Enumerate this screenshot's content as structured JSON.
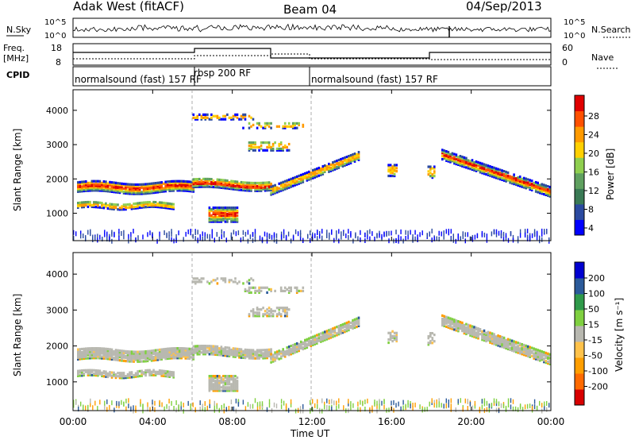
{
  "header": {
    "station": "Adak West (fitACF)",
    "beam": "Beam 04",
    "date": "04/Sep/2013"
  },
  "strip": {
    "nsky_label": "N.Sky",
    "nsky_ticks": [
      "10^5",
      "10^0"
    ],
    "nsearch_label": "N.Search",
    "freq_label_1": "Freq.",
    "freq_label_2": "[MHz]",
    "freq_ticks": [
      "18",
      "8"
    ],
    "nave_ticks": [
      "60",
      "0"
    ],
    "nave_label": "Nave",
    "cpid_label": "CPID"
  },
  "cpid_segments": [
    {
      "label": "normalsound (fast) 157 RF",
      "start_hour": 0
    },
    {
      "label": "rbsp 200 RF",
      "start_hour": 6
    },
    {
      "label": "normalsound (fast) 157 RF",
      "start_hour": 12
    }
  ],
  "colors": {
    "power_scale": [
      "#0000ff",
      "#2b4aa0",
      "#3a7a55",
      "#5fa05f",
      "#8fcf4f",
      "#ffd000",
      "#ff9a00",
      "#ff5000",
      "#e00000"
    ],
    "velocity_scale": [
      "#d80000",
      "#ff6a00",
      "#ff9e00",
      "#ffc24a",
      "#b8b8b0",
      "#7fd040",
      "#2f9a4a",
      "#2b5a9a",
      "#0000d0"
    ]
  },
  "chart_data": [
    {
      "type": "heatmap",
      "name": "power",
      "ylabel": "Slant Range [km]",
      "yticks": [
        1000,
        2000,
        3000,
        4000
      ],
      "ylim": [
        200,
        4600
      ],
      "xticks": [
        "00:00",
        "04:00",
        "08:00",
        "12:00",
        "16:00",
        "20:00",
        "00:00"
      ],
      "xlim_hours": [
        0,
        24
      ],
      "colorbar_label": "Power [dB]",
      "colorbar_ticks": [
        "28",
        "24",
        "20",
        "16",
        "12",
        "8",
        "4"
      ]
    },
    {
      "type": "heatmap",
      "name": "velocity",
      "ylabel": "Slant Range [km]",
      "yticks": [
        1000,
        2000,
        3000,
        4000
      ],
      "ylim": [
        200,
        4600
      ],
      "xticks": [
        "00:00",
        "04:00",
        "08:00",
        "12:00",
        "16:00",
        "20:00",
        "00:00"
      ],
      "xlim_hours": [
        0,
        24
      ],
      "xlabel": "Time UT",
      "colorbar_label": "Velocity [m s⁻¹]",
      "colorbar_ticks": [
        "200",
        "100",
        "50",
        "15",
        "-15",
        "-50",
        "-100",
        "-200"
      ]
    }
  ]
}
